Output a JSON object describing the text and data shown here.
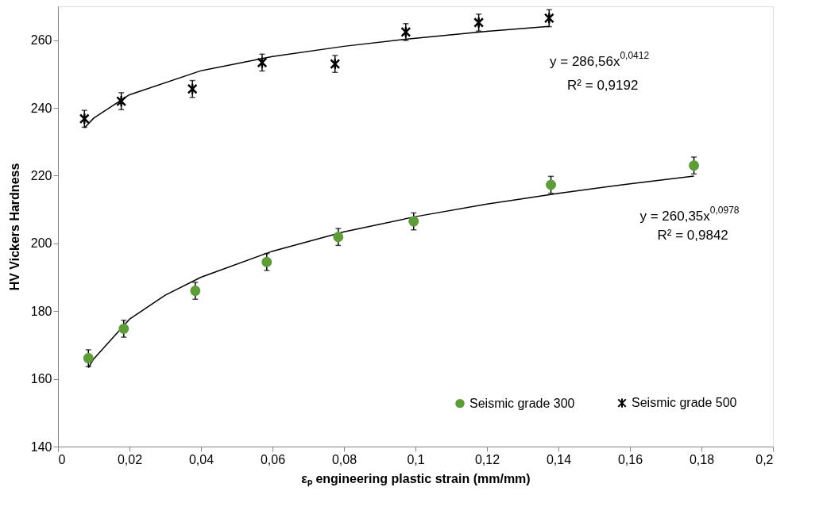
{
  "chart_data": {
    "type": "scatter",
    "xlabel": "εₚ engineering plastic strain (mm/mm)",
    "ylabel": "HV Vickers Hardness",
    "xlim": [
      0,
      0.2
    ],
    "ylim": [
      140,
      270
    ],
    "xticks": [
      0,
      {
        "value": 0.02,
        "label": "0,02"
      },
      {
        "value": 0.04,
        "label": "0,04"
      },
      {
        "value": 0.06,
        "label": "0,06"
      },
      {
        "value": 0.08,
        "label": "0,08"
      },
      {
        "value": 0.1,
        "label": "0,1"
      },
      {
        "value": 0.12,
        "label": "0,12"
      },
      {
        "value": 0.14,
        "label": "0,14"
      },
      {
        "value": 0.16,
        "label": "0,16"
      },
      {
        "value": 0.18,
        "label": "0,18"
      },
      {
        "value": 0.2,
        "label": "0,2"
      }
    ],
    "yticks": [
      140,
      160,
      180,
      200,
      220,
      240,
      260
    ],
    "legend": "bottom right",
    "series": [
      {
        "name": "Seismic grade 300",
        "color": "#5e9c3a",
        "marker": "circle",
        "x": [
          0.0085,
          0.0184,
          0.0384,
          0.0584,
          0.0784,
          0.0995,
          0.1379,
          0.1779
        ],
        "values": [
          166.1,
          174.8,
          186.0,
          194.5,
          201.9,
          206.5,
          217.3,
          223.0
        ],
        "errors": [
          2.5,
          2.5,
          2.5,
          2.5,
          2.5,
          2.5,
          2.5,
          2.5
        ]
      },
      {
        "name": "Seismic grade 500",
        "color": "#000000",
        "marker": "cross",
        "x": [
          0.0074,
          0.0177,
          0.0376,
          0.0571,
          0.0775,
          0.0973,
          0.1177,
          0.1374
        ],
        "values": [
          236.8,
          242.0,
          245.6,
          253.4,
          253.0,
          262.4,
          265.2,
          266.5
        ],
        "errors": [
          2.5,
          2.5,
          2.5,
          2.5,
          2.5,
          2.5,
          2.5,
          2.5
        ]
      },
      {
        "type": "line",
        "color": "#000000",
        "x": [
          0.0085,
          0.01,
          0.02,
          0.03,
          0.04,
          0.06,
          0.08,
          0.1,
          0.12,
          0.14,
          0.16,
          0.1779
        ],
        "values": [
          163.3,
          165.9,
          177.6,
          184.7,
          190.0,
          197.7,
          203.4,
          207.9,
          211.6,
          214.8,
          217.6,
          219.9
        ]
      },
      {
        "type": "line",
        "color": "#000000",
        "x": [
          0.0074,
          0.01,
          0.02,
          0.04,
          0.06,
          0.08,
          0.1,
          0.12,
          0.1374
        ],
        "values": [
          234.1,
          237.0,
          243.9,
          251.0,
          255.2,
          258.2,
          260.6,
          262.6,
          264.1
        ]
      }
    ],
    "annotations": [
      "y = 286,56x$^{0,0412}$",
      "R² = 0,9192",
      "y = 260,35x$^{0,0978}$",
      "R² = 0,9842"
    ]
  }
}
